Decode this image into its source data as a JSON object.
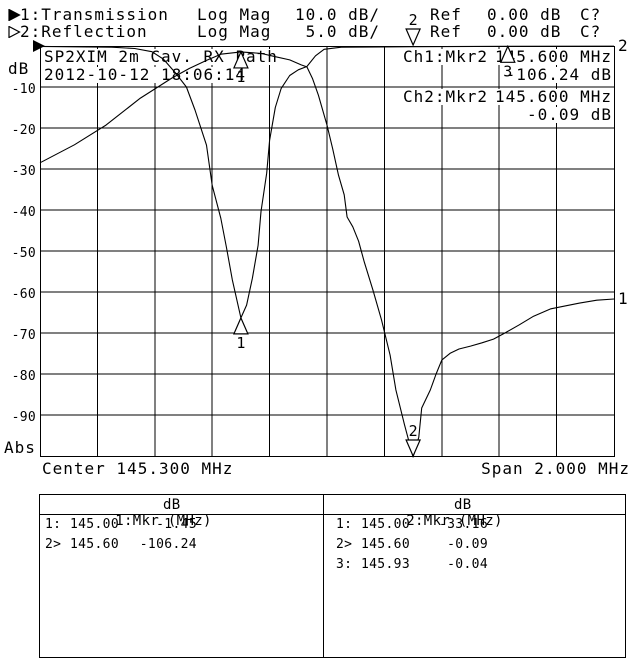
{
  "header": {
    "rows": [
      {
        "arrow": "filled",
        "label": "1:Transmission",
        "mode": "Log Mag",
        "scale": "10.0 dB/",
        "ref_label": "Ref",
        "ref_value": "0.00 dB",
        "status": "C?"
      },
      {
        "arrow": "open",
        "label": "2:Reflection",
        "mode": "Log Mag",
        "scale": "5.0 dB/",
        "ref_label": "Ref",
        "ref_value": "0.00 dB",
        "status": "C?"
      }
    ]
  },
  "chart": {
    "title": "SP2XIM 2m Cav. RX Path",
    "datetime": "2012-10-12 18:06:14",
    "readouts": [
      {
        "ch": "Ch1:Mkr2",
        "freq": "145.600 MHz",
        "value": "-106.24 dB"
      },
      {
        "ch": "Ch2:Mkr2",
        "freq": "145.600 MHz",
        "value": "-0.09 dB"
      }
    ],
    "y_axis": {
      "unit": "dB",
      "bottom": "Abs",
      "ticks": [
        "-10",
        "-20",
        "-30",
        "-40",
        "-50",
        "-60",
        "-70",
        "-80",
        "-90"
      ]
    },
    "x_axis": {
      "center": "Center 145.300 MHz",
      "span": "Span 2.000 MHz"
    }
  },
  "chart_data": {
    "type": "line",
    "title": "SP2XIM 2m Cav. RX Path",
    "x_axis": {
      "center_mhz": 145.3,
      "span_mhz": 2.0,
      "min_mhz": 144.3,
      "max_mhz": 146.3,
      "divisions": 10
    },
    "grid": true,
    "series": [
      {
        "name": "Transmission",
        "trace": 1,
        "scale_db_per_div": 10.0,
        "ref_db": 0.0,
        "visible_range_db": [
          0,
          -100
        ],
        "points_mhz_db": [
          [
            144.3,
            -28.5
          ],
          [
            144.42,
            -24.1
          ],
          [
            144.53,
            -19.3
          ],
          [
            144.65,
            -12.7
          ],
          [
            144.76,
            -7.8
          ],
          [
            144.82,
            -5.5
          ],
          [
            144.88,
            -3.5
          ],
          [
            144.93,
            -2.0
          ],
          [
            145.0,
            -1.45
          ],
          [
            145.07,
            -1.8
          ],
          [
            145.12,
            -2.6
          ],
          [
            145.17,
            -3.4
          ],
          [
            145.21,
            -4.6
          ],
          [
            145.23,
            -5.1
          ],
          [
            145.25,
            -8.0
          ],
          [
            145.27,
            -12.0
          ],
          [
            145.3,
            -19.3
          ],
          [
            145.32,
            -25.1
          ],
          [
            145.34,
            -31.5
          ],
          [
            145.36,
            -36.3
          ],
          [
            145.37,
            -41.7
          ],
          [
            145.39,
            -44.1
          ],
          [
            145.41,
            -47.6
          ],
          [
            145.43,
            -52.7
          ],
          [
            145.46,
            -59.5
          ],
          [
            145.49,
            -66.8
          ],
          [
            145.52,
            -75.4
          ],
          [
            145.54,
            -83.9
          ],
          [
            145.57,
            -92.4
          ],
          [
            145.6,
            -106.24
          ],
          [
            145.62,
            -95.4
          ],
          [
            145.63,
            -88.3
          ],
          [
            145.66,
            -83.9
          ],
          [
            145.68,
            -80.0
          ],
          [
            145.7,
            -76.6
          ],
          [
            145.73,
            -74.9
          ],
          [
            145.76,
            -73.9
          ],
          [
            145.8,
            -73.2
          ],
          [
            145.84,
            -72.4
          ],
          [
            145.88,
            -71.5
          ],
          [
            145.92,
            -70.0
          ],
          [
            145.97,
            -68.0
          ],
          [
            146.02,
            -65.9
          ],
          [
            146.08,
            -64.1
          ],
          [
            146.13,
            -63.4
          ],
          [
            146.18,
            -62.7
          ],
          [
            146.24,
            -62.0
          ],
          [
            146.3,
            -61.7
          ]
        ]
      },
      {
        "name": "Reflection",
        "trace": 2,
        "scale_db_per_div": 5.0,
        "ref_db": 0.0,
        "visible_range_db": [
          0,
          -50
        ],
        "points_mhz_db": [
          [
            144.3,
            -0.05
          ],
          [
            144.55,
            -0.15
          ],
          [
            144.63,
            -0.3
          ],
          [
            144.69,
            -0.7
          ],
          [
            144.73,
            -1.6
          ],
          [
            144.77,
            -3.2
          ],
          [
            144.81,
            -5.0
          ],
          [
            144.84,
            -7.8
          ],
          [
            144.88,
            -12.1
          ],
          [
            144.9,
            -17.0
          ],
          [
            144.93,
            -21.0
          ],
          [
            144.95,
            -24.6
          ],
          [
            144.97,
            -28.5
          ],
          [
            145.0,
            -33.16
          ],
          [
            145.02,
            -31.6
          ],
          [
            145.04,
            -28.3
          ],
          [
            145.06,
            -24.3
          ],
          [
            145.07,
            -20.2
          ],
          [
            145.09,
            -15.5
          ],
          [
            145.1,
            -11.5
          ],
          [
            145.12,
            -7.5
          ],
          [
            145.14,
            -5.2
          ],
          [
            145.17,
            -3.6
          ],
          [
            145.2,
            -2.9
          ],
          [
            145.23,
            -2.5
          ],
          [
            145.26,
            -1.2
          ],
          [
            145.29,
            -0.4
          ],
          [
            145.35,
            -0.15
          ],
          [
            145.6,
            -0.09
          ],
          [
            145.93,
            -0.04
          ],
          [
            146.3,
            -0.02
          ]
        ]
      }
    ],
    "markers": [
      {
        "trace": 1,
        "label": "1",
        "mhz": 145.0,
        "db": -1.45,
        "pin": null
      },
      {
        "trace": 1,
        "label": "2",
        "mhz": 145.6,
        "db": -106.24,
        "pin": "bottom"
      },
      {
        "trace": 2,
        "label": "1",
        "mhz": 145.0,
        "db": -33.16,
        "pin": null
      },
      {
        "trace": 2,
        "label": "2",
        "mhz": 145.6,
        "db": -0.09,
        "pin": "top"
      },
      {
        "trace": 2,
        "label": "3",
        "mhz": 145.93,
        "db": -0.04,
        "pin": null
      }
    ],
    "trace_end_labels": [
      {
        "trace": 1,
        "label": "1"
      },
      {
        "trace": 2,
        "label": "2"
      }
    ]
  },
  "tables": [
    {
      "header": {
        "title": "1:Mkr (MHz)",
        "unit": "dB"
      },
      "rows": [
        {
          "id": "1:",
          "mhz": "145.00",
          "db": "-1.45"
        },
        {
          "id": "2>",
          "mhz": "145.60",
          "db": "-106.24"
        }
      ]
    },
    {
      "header": {
        "title": "2:Mkr (MHz)",
        "unit": "dB"
      },
      "rows": [
        {
          "id": "1:",
          "mhz": "145.00",
          "db": "-33.16"
        },
        {
          "id": "2>",
          "mhz": "145.60",
          "db": "-0.09"
        },
        {
          "id": "3:",
          "mhz": "145.93",
          "db": "-0.04"
        }
      ]
    }
  ]
}
